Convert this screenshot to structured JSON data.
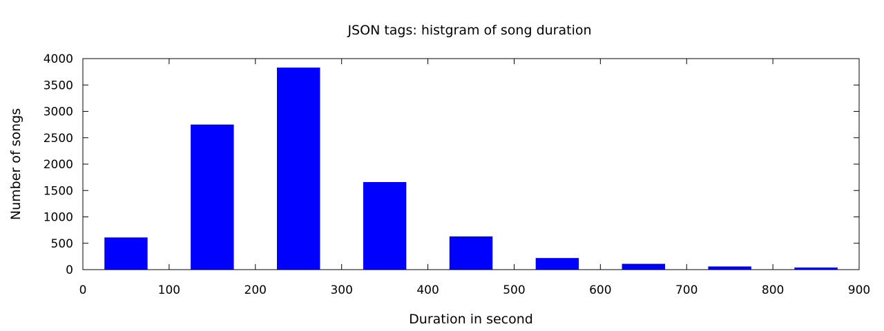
{
  "chart_data": {
    "type": "bar",
    "title": "JSON tags: histgram of song duration",
    "xlabel": "Duration in second",
    "ylabel": "Number of songs",
    "xlim": [
      0,
      900
    ],
    "ylim": [
      0,
      4000
    ],
    "xticks": [
      0,
      100,
      200,
      300,
      400,
      500,
      600,
      700,
      800,
      900
    ],
    "yticks": [
      0,
      500,
      1000,
      1500,
      2000,
      2500,
      3000,
      3500,
      4000
    ],
    "bin_width": 100,
    "bar_width": 50,
    "bar_color": "#0000ff",
    "grid": false,
    "bars": [
      {
        "x": 50,
        "value": 610
      },
      {
        "x": 150,
        "value": 2750
      },
      {
        "x": 250,
        "value": 3830
      },
      {
        "x": 350,
        "value": 1660
      },
      {
        "x": 450,
        "value": 630
      },
      {
        "x": 550,
        "value": 220
      },
      {
        "x": 650,
        "value": 110
      },
      {
        "x": 750,
        "value": 60
      },
      {
        "x": 850,
        "value": 40
      }
    ]
  }
}
